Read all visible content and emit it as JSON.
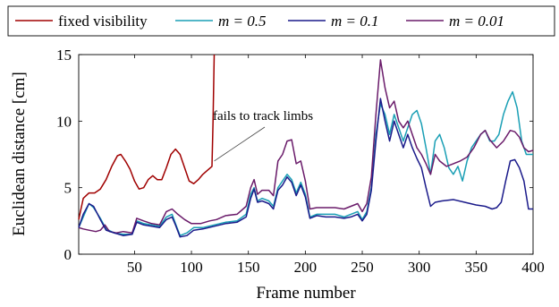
{
  "chart_data": {
    "type": "line",
    "xlabel": "Frame number",
    "ylabel": "Euclidean distance [cm]",
    "xlim": [
      1,
      400
    ],
    "ylim": [
      0,
      15
    ],
    "xticks": [
      50,
      100,
      150,
      200,
      250,
      300,
      350,
      400
    ],
    "yticks": [
      0,
      5,
      10,
      15
    ],
    "legend_position": "top, above plot, single row",
    "annotation": {
      "text": "fails to track limbs",
      "points_to": {
        "x": 120,
        "y": 7
      }
    },
    "series": [
      {
        "name": "fixed visibility",
        "legend_math": "",
        "color": "#a00000",
        "points": [
          [
            1,
            2.6
          ],
          [
            5,
            4.2
          ],
          [
            10,
            4.6
          ],
          [
            15,
            4.6
          ],
          [
            20,
            4.9
          ],
          [
            25,
            5.6
          ],
          [
            30,
            6.6
          ],
          [
            35,
            7.4
          ],
          [
            38,
            7.5
          ],
          [
            42,
            7.0
          ],
          [
            46,
            6.4
          ],
          [
            50,
            5.5
          ],
          [
            54,
            4.9
          ],
          [
            58,
            5.0
          ],
          [
            62,
            5.6
          ],
          [
            66,
            5.9
          ],
          [
            70,
            5.6
          ],
          [
            74,
            5.6
          ],
          [
            78,
            6.5
          ],
          [
            82,
            7.5
          ],
          [
            86,
            7.9
          ],
          [
            90,
            7.5
          ],
          [
            94,
            6.5
          ],
          [
            98,
            5.5
          ],
          [
            102,
            5.3
          ],
          [
            106,
            5.6
          ],
          [
            110,
            6.0
          ],
          [
            114,
            6.3
          ],
          [
            118,
            6.6
          ],
          [
            119,
            10.0
          ],
          [
            120,
            15.0
          ]
        ]
      },
      {
        "name": "",
        "legend_math": "m = 0.5",
        "color": "#1a9fb5",
        "points": [
          [
            1,
            2.0
          ],
          [
            10,
            3.8
          ],
          [
            14,
            3.5
          ],
          [
            20,
            2.7
          ],
          [
            25,
            1.9
          ],
          [
            32,
            1.6
          ],
          [
            40,
            1.5
          ],
          [
            48,
            1.5
          ],
          [
            52,
            2.5
          ],
          [
            58,
            2.3
          ],
          [
            65,
            2.2
          ],
          [
            72,
            2.1
          ],
          [
            78,
            2.8
          ],
          [
            83,
            3.0
          ],
          [
            86,
            2.3
          ],
          [
            90,
            1.4
          ],
          [
            96,
            1.6
          ],
          [
            102,
            2.0
          ],
          [
            110,
            2.0
          ],
          [
            120,
            2.2
          ],
          [
            130,
            2.4
          ],
          [
            140,
            2.5
          ],
          [
            148,
            3.0
          ],
          [
            152,
            4.5
          ],
          [
            155,
            5.0
          ],
          [
            158,
            4.0
          ],
          [
            162,
            4.2
          ],
          [
            168,
            4.0
          ],
          [
            172,
            3.6
          ],
          [
            176,
            5.0
          ],
          [
            180,
            5.5
          ],
          [
            184,
            6.0
          ],
          [
            188,
            5.6
          ],
          [
            192,
            4.6
          ],
          [
            196,
            5.4
          ],
          [
            200,
            4.5
          ],
          [
            204,
            2.8
          ],
          [
            210,
            3.0
          ],
          [
            218,
            3.0
          ],
          [
            226,
            3.0
          ],
          [
            234,
            2.8
          ],
          [
            240,
            3.0
          ],
          [
            246,
            3.2
          ],
          [
            250,
            2.6
          ],
          [
            254,
            3.2
          ],
          [
            258,
            5.0
          ],
          [
            262,
            9.0
          ],
          [
            266,
            11.3
          ],
          [
            270,
            10.5
          ],
          [
            274,
            9.0
          ],
          [
            278,
            10.5
          ],
          [
            282,
            9.5
          ],
          [
            286,
            8.5
          ],
          [
            290,
            9.5
          ],
          [
            294,
            10.5
          ],
          [
            298,
            10.8
          ],
          [
            302,
            9.8
          ],
          [
            306,
            8.0
          ],
          [
            310,
            6.0
          ],
          [
            314,
            8.5
          ],
          [
            318,
            9.0
          ],
          [
            322,
            8.0
          ],
          [
            326,
            6.5
          ],
          [
            330,
            6.0
          ],
          [
            334,
            6.6
          ],
          [
            338,
            5.5
          ],
          [
            342,
            7.0
          ],
          [
            346,
            8.0
          ],
          [
            350,
            8.5
          ],
          [
            354,
            9.0
          ],
          [
            358,
            9.3
          ],
          [
            362,
            8.5
          ],
          [
            366,
            8.5
          ],
          [
            370,
            9.0
          ],
          [
            374,
            10.5
          ],
          [
            378,
            11.5
          ],
          [
            382,
            12.2
          ],
          [
            386,
            11.0
          ],
          [
            390,
            8.5
          ],
          [
            394,
            7.5
          ],
          [
            398,
            7.5
          ],
          [
            400,
            7.5
          ]
        ]
      },
      {
        "name": "",
        "legend_math": "m = 0.1",
        "color": "#1a1a8a",
        "points": [
          [
            1,
            2.0
          ],
          [
            5,
            3.0
          ],
          [
            10,
            3.8
          ],
          [
            14,
            3.6
          ],
          [
            20,
            2.6
          ],
          [
            25,
            1.8
          ],
          [
            32,
            1.6
          ],
          [
            40,
            1.4
          ],
          [
            48,
            1.5
          ],
          [
            52,
            2.4
          ],
          [
            58,
            2.2
          ],
          [
            65,
            2.1
          ],
          [
            72,
            2.0
          ],
          [
            78,
            2.6
          ],
          [
            83,
            2.8
          ],
          [
            86,
            2.2
          ],
          [
            90,
            1.3
          ],
          [
            96,
            1.4
          ],
          [
            102,
            1.8
          ],
          [
            110,
            1.9
          ],
          [
            120,
            2.1
          ],
          [
            130,
            2.3
          ],
          [
            140,
            2.4
          ],
          [
            148,
            2.8
          ],
          [
            152,
            4.2
          ],
          [
            155,
            4.9
          ],
          [
            158,
            3.9
          ],
          [
            162,
            4.0
          ],
          [
            168,
            3.8
          ],
          [
            172,
            3.4
          ],
          [
            176,
            4.8
          ],
          [
            180,
            5.2
          ],
          [
            184,
            5.8
          ],
          [
            188,
            5.4
          ],
          [
            192,
            4.4
          ],
          [
            196,
            5.2
          ],
          [
            200,
            4.3
          ],
          [
            204,
            2.7
          ],
          [
            210,
            2.9
          ],
          [
            218,
            2.8
          ],
          [
            226,
            2.8
          ],
          [
            234,
            2.7
          ],
          [
            240,
            2.8
          ],
          [
            246,
            3.0
          ],
          [
            250,
            2.5
          ],
          [
            254,
            3.0
          ],
          [
            258,
            4.8
          ],
          [
            262,
            8.5
          ],
          [
            266,
            11.7
          ],
          [
            270,
            10.0
          ],
          [
            274,
            8.5
          ],
          [
            278,
            10.0
          ],
          [
            282,
            9.0
          ],
          [
            286,
            8.0
          ],
          [
            290,
            9.0
          ],
          [
            294,
            8.0
          ],
          [
            298,
            7.2
          ],
          [
            302,
            6.5
          ],
          [
            306,
            5.0
          ],
          [
            310,
            3.6
          ],
          [
            314,
            3.9
          ],
          [
            320,
            4.0
          ],
          [
            330,
            4.1
          ],
          [
            340,
            3.9
          ],
          [
            350,
            3.7
          ],
          [
            358,
            3.6
          ],
          [
            364,
            3.4
          ],
          [
            368,
            3.5
          ],
          [
            372,
            3.9
          ],
          [
            376,
            5.5
          ],
          [
            380,
            7.0
          ],
          [
            384,
            7.1
          ],
          [
            388,
            6.5
          ],
          [
            392,
            5.5
          ],
          [
            396,
            3.4
          ],
          [
            400,
            3.4
          ]
        ]
      },
      {
        "name": "",
        "legend_math": "m = 0.01",
        "color": "#6a1b6a",
        "points": [
          [
            1,
            2.0
          ],
          [
            5,
            1.9
          ],
          [
            10,
            1.8
          ],
          [
            16,
            1.7
          ],
          [
            20,
            1.8
          ],
          [
            24,
            2.2
          ],
          [
            28,
            1.7
          ],
          [
            34,
            1.6
          ],
          [
            40,
            1.7
          ],
          [
            48,
            1.6
          ],
          [
            52,
            2.7
          ],
          [
            58,
            2.5
          ],
          [
            65,
            2.3
          ],
          [
            72,
            2.2
          ],
          [
            78,
            3.2
          ],
          [
            83,
            3.4
          ],
          [
            88,
            3.0
          ],
          [
            94,
            2.6
          ],
          [
            100,
            2.3
          ],
          [
            108,
            2.3
          ],
          [
            116,
            2.5
          ],
          [
            122,
            2.6
          ],
          [
            130,
            2.9
          ],
          [
            140,
            3.0
          ],
          [
            148,
            3.6
          ],
          [
            152,
            5.0
          ],
          [
            155,
            5.6
          ],
          [
            158,
            4.5
          ],
          [
            162,
            4.8
          ],
          [
            168,
            4.8
          ],
          [
            172,
            4.4
          ],
          [
            176,
            7.0
          ],
          [
            180,
            7.5
          ],
          [
            184,
            8.5
          ],
          [
            188,
            8.6
          ],
          [
            192,
            6.8
          ],
          [
            196,
            7.0
          ],
          [
            200,
            5.5
          ],
          [
            204,
            3.4
          ],
          [
            210,
            3.5
          ],
          [
            218,
            3.5
          ],
          [
            226,
            3.5
          ],
          [
            234,
            3.4
          ],
          [
            240,
            3.6
          ],
          [
            246,
            3.8
          ],
          [
            250,
            3.2
          ],
          [
            254,
            3.8
          ],
          [
            258,
            5.8
          ],
          [
            262,
            10.5
          ],
          [
            266,
            14.6
          ],
          [
            270,
            12.5
          ],
          [
            274,
            11.0
          ],
          [
            278,
            11.5
          ],
          [
            282,
            10.0
          ],
          [
            286,
            9.5
          ],
          [
            290,
            10.0
          ],
          [
            294,
            9.0
          ],
          [
            298,
            8.0
          ],
          [
            302,
            7.5
          ],
          [
            306,
            6.8
          ],
          [
            310,
            6.0
          ],
          [
            314,
            7.5
          ],
          [
            318,
            7.0
          ],
          [
            324,
            6.6
          ],
          [
            330,
            6.8
          ],
          [
            336,
            7.0
          ],
          [
            342,
            7.3
          ],
          [
            348,
            8.0
          ],
          [
            354,
            9.0
          ],
          [
            358,
            9.3
          ],
          [
            362,
            8.6
          ],
          [
            368,
            8.0
          ],
          [
            374,
            8.5
          ],
          [
            380,
            9.3
          ],
          [
            384,
            9.2
          ],
          [
            388,
            8.8
          ],
          [
            392,
            8.0
          ],
          [
            396,
            7.7
          ],
          [
            400,
            7.8
          ]
        ]
      }
    ]
  }
}
